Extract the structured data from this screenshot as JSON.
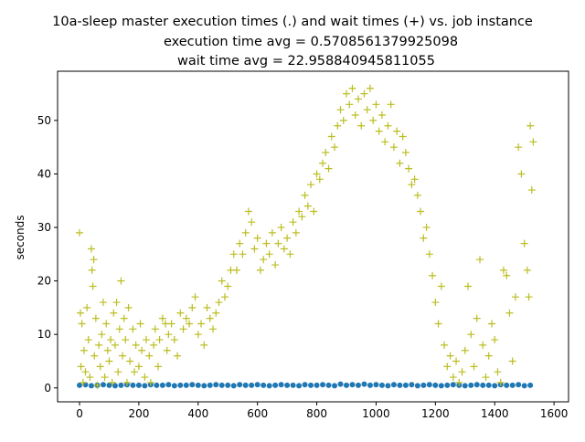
{
  "chart_data": {
    "type": "scatter",
    "title": "10a-sleep master execution times (.) and wait times (+) vs. job instance",
    "subtitle": [
      "execution time avg = 0.5708561379925098",
      "wait time avg = 22.958840945811055"
    ],
    "y_label": "seconds",
    "xlim": [
      -74,
      1649
    ],
    "ylim": [
      -2.6,
      59.2
    ],
    "xticks": [
      0,
      200,
      400,
      600,
      800,
      1000,
      1200,
      1400,
      1600
    ],
    "yticks": [
      0,
      10,
      20,
      30,
      40,
      50
    ],
    "series": [
      {
        "color": "#1f77b4",
        "marker": "dot",
        "x": [
          0,
          20,
          40,
          60,
          80,
          100,
          120,
          140,
          160,
          180,
          200,
          220,
          240,
          260,
          280,
          300,
          320,
          340,
          360,
          380,
          400,
          420,
          440,
          460,
          480,
          500,
          520,
          540,
          560,
          580,
          600,
          620,
          640,
          660,
          680,
          700,
          720,
          740,
          760,
          780,
          800,
          820,
          840,
          860,
          880,
          900,
          920,
          940,
          960,
          980,
          1000,
          1020,
          1040,
          1060,
          1080,
          1100,
          1120,
          1140,
          1160,
          1180,
          1200,
          1220,
          1240,
          1260,
          1280,
          1300,
          1320,
          1340,
          1360,
          1380,
          1400,
          1420,
          1440,
          1460,
          1480,
          1500,
          1520
        ],
        "values": [
          0.5,
          0.6,
          0.4,
          0.5,
          0.6,
          0.5,
          0.4,
          0.5,
          0.6,
          0.5,
          0.5,
          0.4,
          0.6,
          0.5,
          0.5,
          0.6,
          0.4,
          0.5,
          0.5,
          0.6,
          0.5,
          0.4,
          0.5,
          0.6,
          0.5,
          0.5,
          0.4,
          0.6,
          0.5,
          0.5,
          0.6,
          0.5,
          0.4,
          0.5,
          0.6,
          0.5,
          0.5,
          0.4,
          0.6,
          0.5,
          0.5,
          0.6,
          0.5,
          0.4,
          0.7,
          0.5,
          0.6,
          0.5,
          0.7,
          0.5,
          0.6,
          0.5,
          0.4,
          0.6,
          0.5,
          0.5,
          0.6,
          0.4,
          0.5,
          0.6,
          0.5,
          0.4,
          0.5,
          0.6,
          0.5,
          0.4,
          0.5,
          0.6,
          0.5,
          0.5,
          0.4,
          0.6,
          0.5,
          0.5,
          0.6,
          0.4,
          0.5
        ]
      },
      {
        "color": "#bcbd22",
        "marker": "plus",
        "x": [
          0,
          3,
          5,
          8,
          12,
          15,
          20,
          25,
          30,
          35,
          40,
          42,
          45,
          48,
          50,
          55,
          60,
          65,
          70,
          75,
          80,
          85,
          90,
          95,
          100,
          105,
          110,
          115,
          120,
          125,
          130,
          135,
          140,
          145,
          150,
          155,
          160,
          165,
          170,
          180,
          185,
          190,
          200,
          205,
          210,
          220,
          225,
          235,
          240,
          250,
          255,
          265,
          270,
          280,
          290,
          295,
          300,
          310,
          320,
          330,
          340,
          350,
          360,
          370,
          380,
          390,
          400,
          410,
          420,
          430,
          440,
          450,
          460,
          470,
          480,
          490,
          500,
          510,
          520,
          530,
          540,
          550,
          560,
          570,
          580,
          590,
          600,
          610,
          620,
          630,
          640,
          650,
          660,
          670,
          680,
          690,
          700,
          710,
          720,
          730,
          740,
          750,
          760,
          770,
          780,
          790,
          800,
          810,
          820,
          830,
          840,
          850,
          860,
          870,
          880,
          890,
          900,
          910,
          920,
          930,
          940,
          950,
          960,
          970,
          980,
          990,
          1000,
          1010,
          1020,
          1030,
          1040,
          1050,
          1060,
          1070,
          1080,
          1090,
          1100,
          1110,
          1120,
          1130,
          1140,
          1150,
          1160,
          1170,
          1180,
          1190,
          1200,
          1210,
          1220,
          1230,
          1240,
          1250,
          1260,
          1270,
          1280,
          1290,
          1300,
          1310,
          1320,
          1330,
          1340,
          1350,
          1360,
          1370,
          1380,
          1390,
          1400,
          1410,
          1420,
          1430,
          1440,
          1450,
          1460,
          1470,
          1480,
          1490,
          1500,
          1510,
          1515,
          1520,
          1525,
          1530
        ],
        "values": [
          29,
          14,
          4,
          12,
          1,
          7,
          3,
          15,
          9,
          2,
          26,
          22,
          19,
          24,
          6,
          13,
          0.5,
          8,
          4,
          10,
          16,
          2,
          12,
          7,
          5,
          9,
          1,
          14,
          8,
          16,
          3,
          11,
          20,
          6,
          13,
          9,
          1,
          15,
          5,
          11,
          3,
          8,
          4,
          12,
          7,
          2,
          9,
          6,
          1,
          8,
          11,
          4,
          9,
          13,
          12,
          7,
          10,
          12,
          9,
          6,
          14,
          11,
          13,
          12,
          15,
          17,
          10,
          12,
          8,
          15,
          13,
          11,
          14,
          16,
          20,
          17,
          19,
          22,
          25,
          22,
          27,
          25,
          29,
          33,
          31,
          26,
          28,
          22,
          24,
          27,
          25,
          29,
          23,
          27,
          30,
          26,
          28,
          25,
          31,
          29,
          33,
          32,
          36,
          34,
          38,
          33,
          40,
          39,
          42,
          44,
          41,
          47,
          45,
          49,
          52,
          50,
          55,
          53,
          56,
          51,
          54,
          49,
          55,
          52,
          56,
          50,
          53,
          48,
          51,
          46,
          49,
          53,
          45,
          48,
          42,
          47,
          44,
          41,
          38,
          39,
          36,
          33,
          28,
          30,
          25,
          21,
          16,
          12,
          19,
          8,
          4,
          6,
          2,
          5,
          1,
          3,
          7,
          19,
          10,
          4,
          13,
          24,
          8,
          2,
          6,
          12,
          9,
          3,
          1,
          22,
          21,
          14,
          5,
          17,
          45,
          40,
          27,
          22,
          17,
          49,
          37,
          46
        ]
      }
    ]
  }
}
